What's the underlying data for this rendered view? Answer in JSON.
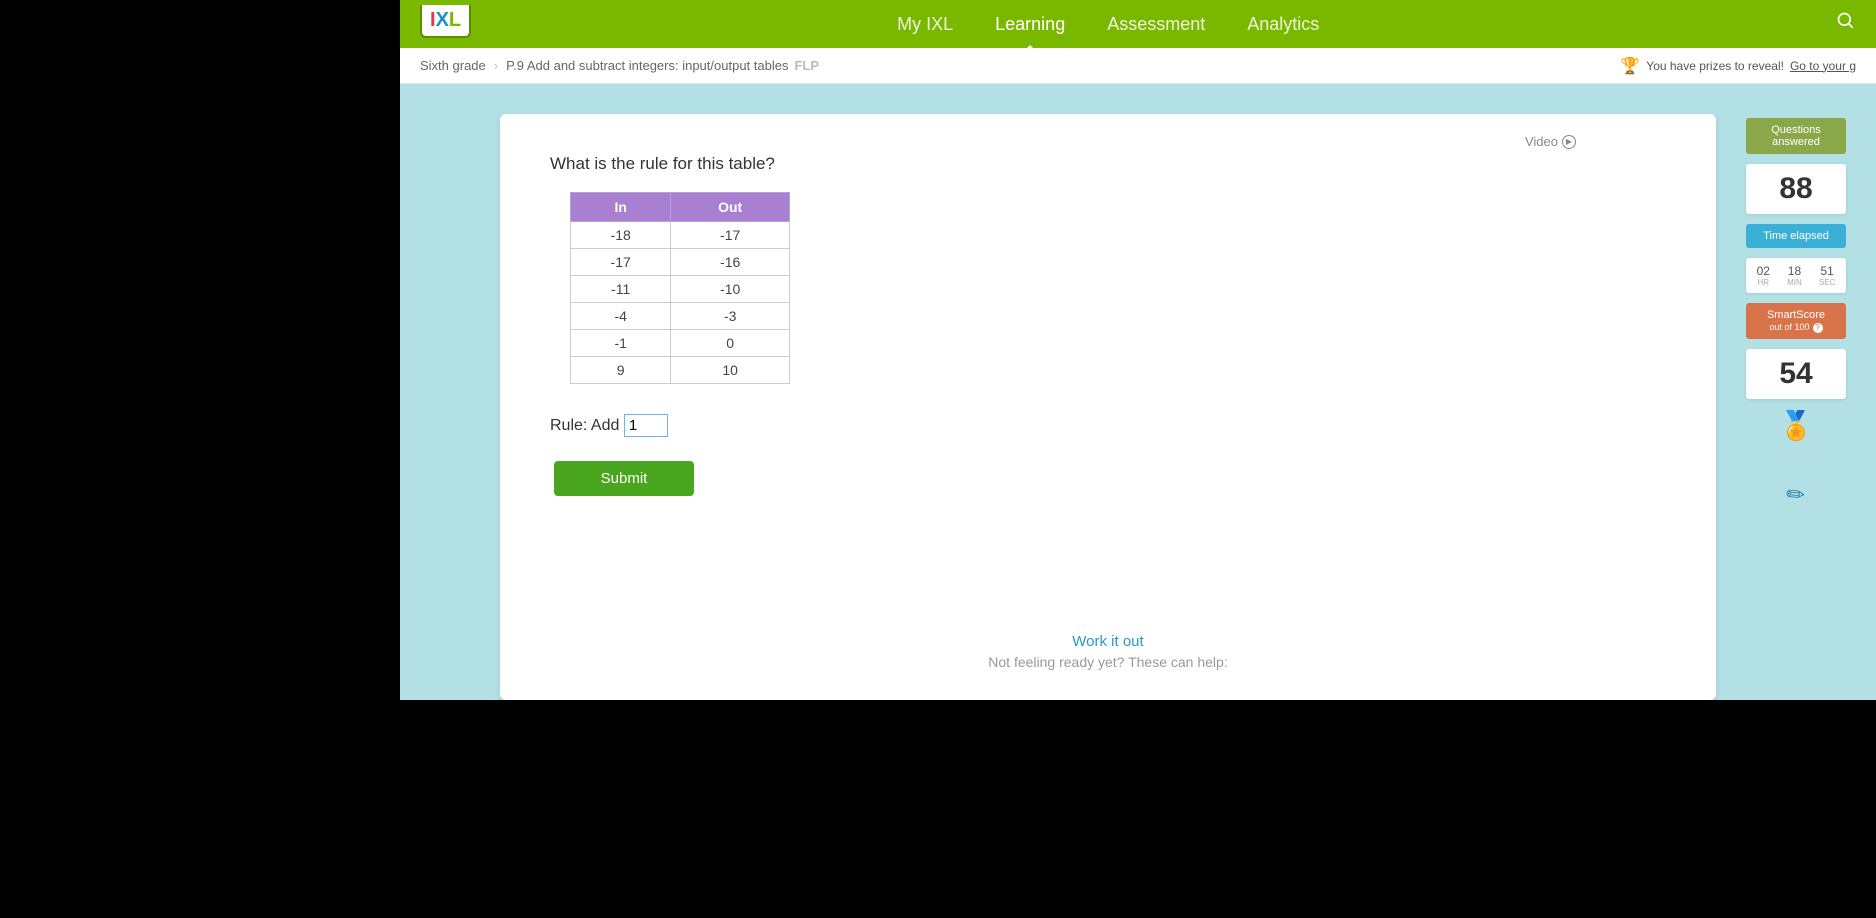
{
  "nav": {
    "items": [
      "My IXL",
      "Learning",
      "Assessment",
      "Analytics"
    ],
    "active_index": 1
  },
  "breadcrumb": {
    "grade": "Sixth grade",
    "skill": "P.9 Add and subtract integers: input/output tables",
    "tag": "FLP"
  },
  "prizes": {
    "text": "You have prizes to reveal!",
    "link": "Go to your g"
  },
  "video_label": "Video",
  "question": "What is the rule for this table?",
  "table": {
    "headers": [
      "In",
      "Out"
    ],
    "header_bg": "#a87fd1",
    "rows": [
      [
        "-18",
        "-17"
      ],
      [
        "-17",
        "-16"
      ],
      [
        "-11",
        "-10"
      ],
      [
        "-4",
        "-3"
      ],
      [
        "-1",
        "0"
      ],
      [
        "9",
        "10"
      ]
    ]
  },
  "rule": {
    "prefix": "Rule: Add",
    "value": "1"
  },
  "submit_label": "Submit",
  "help": {
    "title": "Work it out",
    "subtitle": "Not feeling ready yet? These can help:"
  },
  "sidebar": {
    "questions_label": "Questions answered",
    "questions_value": "88",
    "time_label": "Time elapsed",
    "time": {
      "hr": "02",
      "min": "18",
      "sec": "51",
      "hr_lbl": "HR",
      "min_lbl": "MIN",
      "sec_lbl": "SEC"
    },
    "smartscore_label": "SmartScore",
    "smartscore_sub": "out of 100",
    "smartscore_value": "54"
  },
  "colors": {
    "topbar": "#7ab800",
    "page_bg": "#b3e0e5",
    "submit": "#4aa61f",
    "tile_green": "#8aa74a",
    "tile_blue": "#3bb0d6",
    "tile_orange": "#d9734a",
    "link_blue": "#2a98c5"
  }
}
